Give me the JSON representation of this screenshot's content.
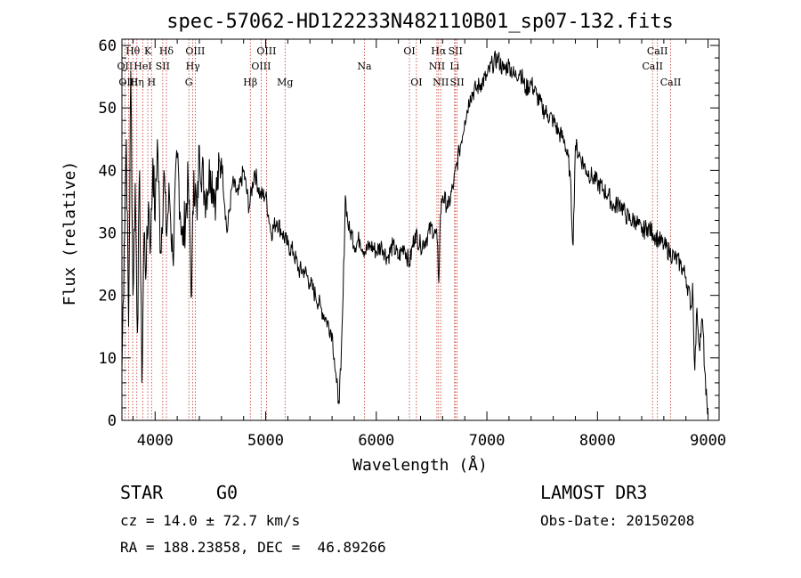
{
  "chart_data": {
    "type": "line",
    "title": "spec-57062-HD122233N482110B01_sp07-132.fits",
    "xlabel": "Wavelength (Å)",
    "ylabel": "Flux (relative)",
    "xlim": [
      3700,
      9100
    ],
    "ylim": [
      0,
      61
    ],
    "xticks": [
      4000,
      5000,
      6000,
      7000,
      8000,
      9000
    ],
    "yticks": [
      0,
      10,
      20,
      30,
      40,
      50,
      60
    ],
    "series": [
      {
        "name": "flux",
        "x": [
          3700,
          3720,
          3740,
          3760,
          3780,
          3800,
          3820,
          3840,
          3860,
          3880,
          3900,
          3920,
          3940,
          3960,
          3980,
          4000,
          4020,
          4050,
          4080,
          4100,
          4130,
          4160,
          4200,
          4250,
          4300,
          4330,
          4350,
          4380,
          4400,
          4450,
          4500,
          4550,
          4600,
          4650,
          4700,
          4750,
          4800,
          4850,
          4900,
          4950,
          5000,
          5050,
          5100,
          5150,
          5200,
          5250,
          5300,
          5350,
          5400,
          5450,
          5500,
          5550,
          5600,
          5620,
          5640,
          5660,
          5680,
          5700,
          5720,
          5740,
          5760,
          5780,
          5800,
          5850,
          5900,
          5950,
          6000,
          6050,
          6100,
          6150,
          6200,
          6250,
          6300,
          6350,
          6400,
          6450,
          6500,
          6550,
          6565,
          6580,
          6600,
          6650,
          6700,
          6750,
          6800,
          6850,
          6900,
          6950,
          7000,
          7050,
          7100,
          7150,
          7200,
          7250,
          7300,
          7350,
          7400,
          7450,
          7500,
          7550,
          7600,
          7650,
          7700,
          7750,
          7780,
          7800,
          7850,
          7900,
          7950,
          8000,
          8050,
          8100,
          8150,
          8200,
          8250,
          8300,
          8350,
          8400,
          8450,
          8500,
          8550,
          8600,
          8650,
          8700,
          8750,
          8800,
          8850,
          8860,
          8880,
          8900,
          8920,
          8950,
          8980,
          9000
        ],
        "y": [
          8,
          28,
          45,
          15,
          56,
          20,
          38,
          14,
          40,
          6,
          30,
          24,
          35,
          28,
          42,
          32,
          45,
          27,
          40,
          30,
          36,
          26,
          42,
          28,
          38,
          20,
          40,
          32,
          44,
          36,
          40,
          36,
          42,
          30,
          38,
          36,
          40,
          34,
          40,
          36,
          36,
          30,
          32,
          30,
          28,
          27,
          24,
          24,
          22,
          20,
          18,
          16,
          14,
          10,
          6,
          3,
          8,
          20,
          36,
          32,
          30,
          30,
          28,
          29,
          27,
          28,
          27,
          28,
          26,
          28,
          26,
          28,
          25,
          30,
          28,
          29,
          31,
          29,
          22,
          33,
          36,
          34,
          38,
          43,
          48,
          52,
          53,
          54,
          55,
          57,
          58,
          56,
          57,
          55,
          56,
          53,
          54,
          52,
          50,
          49,
          48,
          46,
          45,
          40,
          28,
          44,
          42,
          40,
          39,
          38,
          37,
          36,
          34,
          35,
          33,
          32,
          32,
          30,
          31,
          30,
          29,
          28,
          27,
          26,
          25,
          23,
          18,
          22,
          8,
          18,
          12,
          16,
          4,
          2
        ]
      }
    ],
    "line_markers": [
      {
        "label": "Hθ",
        "x": 3798,
        "row": 1
      },
      {
        "label": "OII",
        "x": 3727,
        "row": 2
      },
      {
        "label": "OIII",
        "x": 3760,
        "row": 3
      },
      {
        "label": "K",
        "x": 3934,
        "row": 1
      },
      {
        "label": "HeI",
        "x": 3889,
        "row": 2
      },
      {
        "label": "Hη",
        "x": 3835,
        "row": 3
      },
      {
        "label": "H",
        "x": 3968,
        "row": 3
      },
      {
        "label": "Hδ",
        "x": 4102,
        "row": 1
      },
      {
        "label": "SII",
        "x": 4069,
        "row": 2
      },
      {
        "label": "OIII",
        "x": 4363,
        "row": 1
      },
      {
        "label": "Hγ",
        "x": 4341,
        "row": 2
      },
      {
        "label": "G",
        "x": 4305,
        "row": 3
      },
      {
        "label": "Hβ",
        "x": 4861,
        "row": 3
      },
      {
        "label": "OIII",
        "x": 5007,
        "row": 1
      },
      {
        "label": "OIII",
        "x": 4959,
        "row": 2
      },
      {
        "label": "Mg",
        "x": 5175,
        "row": 3
      },
      {
        "label": "Na",
        "x": 5893,
        "row": 2
      },
      {
        "label": "OI",
        "x": 6300,
        "row": 1
      },
      {
        "label": "OI",
        "x": 6363,
        "row": 3
      },
      {
        "label": "Hα",
        "x": 6563,
        "row": 1
      },
      {
        "label": "SII",
        "x": 6716,
        "row": 1
      },
      {
        "label": "NII",
        "x": 6548,
        "row": 2
      },
      {
        "label": "Li",
        "x": 6708,
        "row": 2
      },
      {
        "label": "NII",
        "x": 6583,
        "row": 3
      },
      {
        "label": "SII",
        "x": 6731,
        "row": 3
      },
      {
        "label": "CaII",
        "x": 8542,
        "row": 1
      },
      {
        "label": "CaII",
        "x": 8498,
        "row": 2
      },
      {
        "label": "CaII",
        "x": 8662,
        "row": 3
      }
    ]
  },
  "info": {
    "object_class": "STAR",
    "subclass": "G0",
    "survey": "LAMOST DR3",
    "redshift": "cz = 14.0 ± 72.7 km/s",
    "obs_date": "Obs-Date: 20150208",
    "coords": "RA = 188.23858, DEC =  46.89266"
  },
  "colors": {
    "marker": "#c0392b",
    "line": "#000000",
    "axis": "#000000"
  }
}
